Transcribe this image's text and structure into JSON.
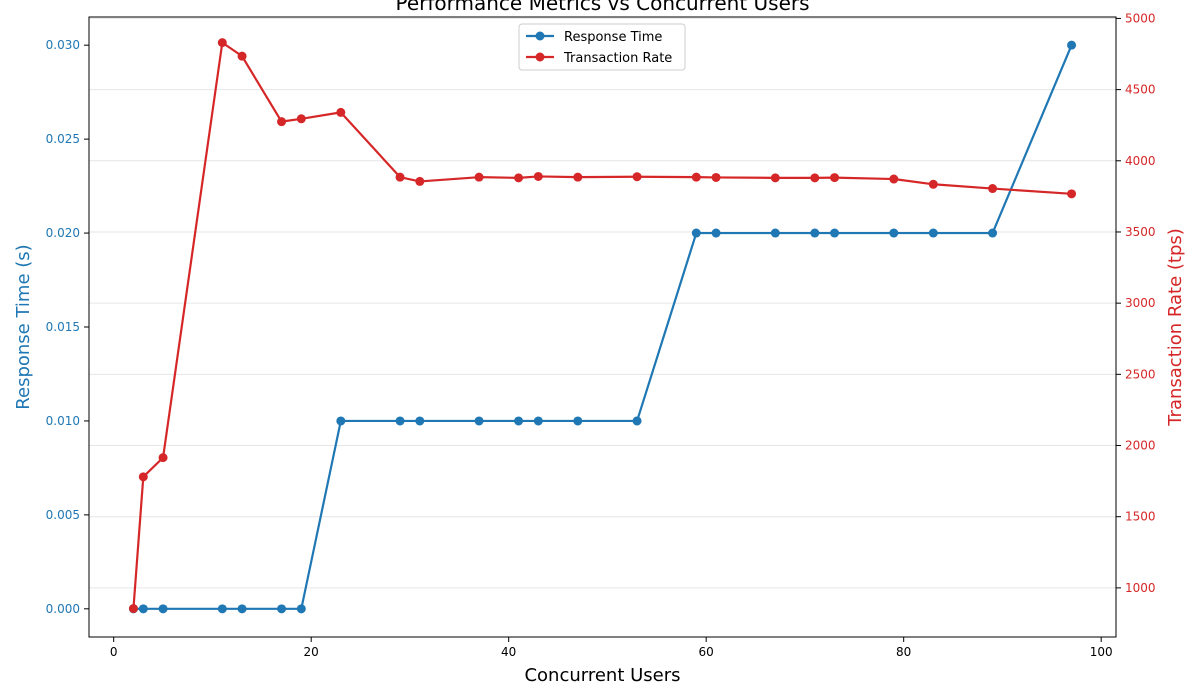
{
  "chart_data": {
    "type": "line",
    "title": "Performance Metrics vs Concurrent Users",
    "xlabel": "Concurrent Users",
    "xlim": [
      -2.5,
      101.5
    ],
    "xticks": [
      0,
      20,
      40,
      60,
      80,
      100
    ],
    "y_left": {
      "label": "Response Time (s)",
      "lim": [
        -0.0015,
        0.0315
      ],
      "ticks": [
        0.0,
        0.005,
        0.01,
        0.015,
        0.02,
        0.025,
        0.03
      ],
      "tick_labels": [
        "0.000",
        "0.005",
        "0.010",
        "0.015",
        "0.020",
        "0.025",
        "0.030"
      ],
      "color": "#1f77b4"
    },
    "y_right": {
      "label": "Transaction Rate (tps)",
      "lim": [
        655,
        5010
      ],
      "ticks": [
        1000,
        1500,
        2000,
        2500,
        3000,
        3500,
        4000,
        4500,
        5000
      ],
      "tick_labels": [
        "1000",
        "1500",
        "2000",
        "2500",
        "3000",
        "3500",
        "4000",
        "4500",
        "5000"
      ],
      "color": "#d62728"
    },
    "grid": true,
    "legend": "top-center",
    "series": [
      {
        "name": "Response Time",
        "axis": "left",
        "color": "#1f77b4",
        "x": [
          2,
          3,
          5,
          11,
          13,
          17,
          19,
          23,
          29,
          31,
          37,
          41,
          43,
          47,
          53,
          59,
          61,
          67,
          71,
          73,
          79,
          83,
          89,
          97
        ],
        "y": [
          0,
          0,
          0,
          0,
          0,
          0,
          0,
          0.01,
          0.01,
          0.01,
          0.01,
          0.01,
          0.01,
          0.01,
          0.01,
          0.02,
          0.02,
          0.02,
          0.02,
          0.02,
          0.02,
          0.02,
          0.02,
          0.03
        ]
      },
      {
        "name": "Transaction Rate",
        "axis": "right",
        "color": "#d62728",
        "x": [
          2,
          3,
          5,
          11,
          13,
          17,
          19,
          23,
          29,
          31,
          37,
          41,
          43,
          47,
          53,
          59,
          61,
          67,
          71,
          73,
          79,
          83,
          89,
          97
        ],
        "y": [
          855,
          1780,
          1915,
          4830,
          4735,
          4275,
          4295,
          4340,
          3885,
          3855,
          3885,
          3880,
          3890,
          3885,
          3888,
          3885,
          3883,
          3880,
          3880,
          3882,
          3872,
          3835,
          3805,
          3768
        ]
      }
    ]
  }
}
